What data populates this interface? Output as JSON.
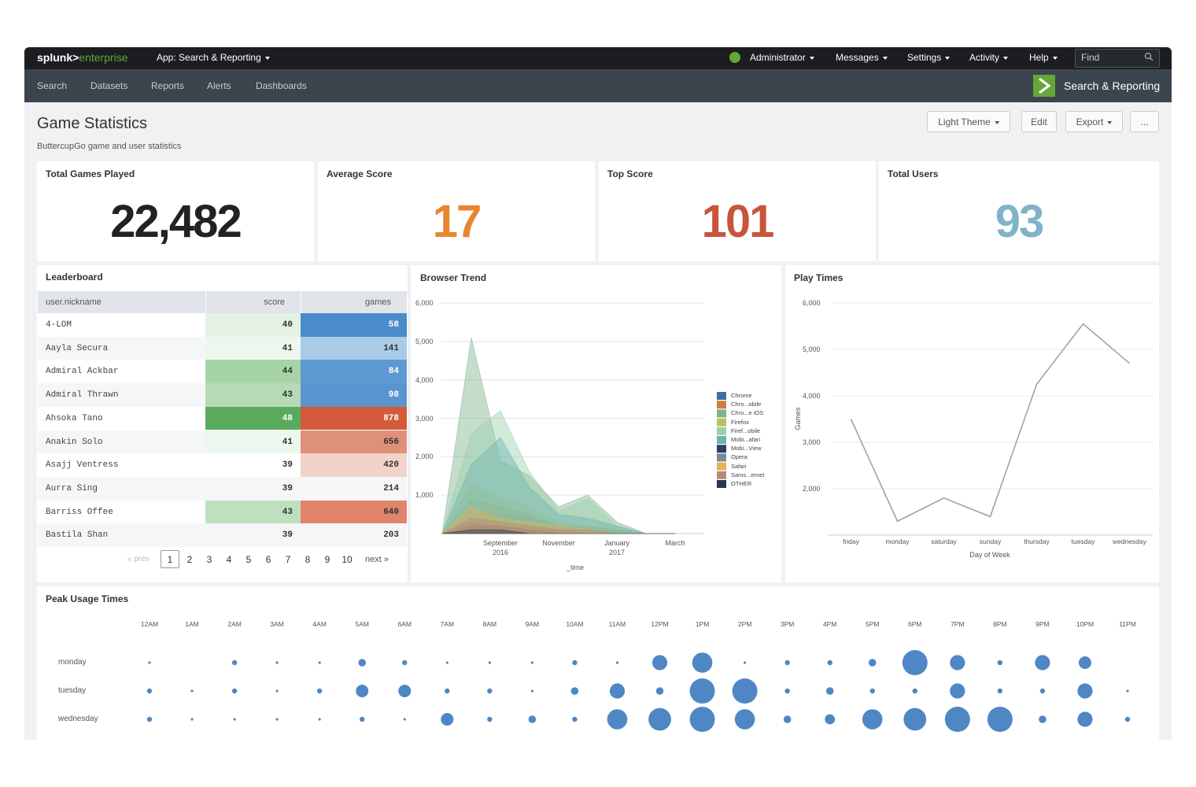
{
  "nav": {
    "logo": {
      "brand": "splunk>",
      "product": "enterprise"
    },
    "app": "App: Search & Reporting",
    "menu": [
      "Administrator",
      "Messages",
      "Settings",
      "Activity",
      "Help"
    ],
    "search_placeholder": "Find"
  },
  "subnav": {
    "links": [
      "Search",
      "Datasets",
      "Reports",
      "Alerts",
      "Dashboards"
    ],
    "app_name": "Search & Reporting"
  },
  "dashboard": {
    "title": "Game Statistics",
    "description": "ButtercupGo game and user statistics",
    "buttons": [
      "Light Theme",
      "Edit",
      "Export",
      "..."
    ]
  },
  "singles": [
    {
      "title": "Total Games Played",
      "value": "22,482",
      "color": "#222222"
    },
    {
      "title": "Average Score",
      "value": "17",
      "color": "#e8862f"
    },
    {
      "title": "Top Score",
      "value": "101",
      "color": "#c8553a"
    },
    {
      "title": "Total Users",
      "value": "93",
      "color": "#7fb3c8"
    }
  ],
  "leaderboard": {
    "title": "Leaderboard",
    "columns": [
      "user.nickname",
      "score",
      "games"
    ],
    "rows": [
      [
        "4-LOM",
        40,
        58
      ],
      [
        "Aayla Secura",
        41,
        141
      ],
      [
        "Admiral Ackbar",
        44,
        84
      ],
      [
        "Admiral Thrawn",
        43,
        98
      ],
      [
        "Ahsoka Tano",
        48,
        878
      ],
      [
        "Anakin Solo",
        41,
        656
      ],
      [
        "Asajj Ventress",
        39,
        420
      ],
      [
        "Aurra Sing",
        39,
        214
      ],
      [
        "Barriss Offee",
        43,
        640
      ],
      [
        "Bastila Shan",
        39,
        203
      ]
    ],
    "score_colors": [
      "#e4f2e4",
      "#eef7ee",
      "#a7d4a7",
      "#b5dab5",
      "#5aaa5c",
      "#eef7ee",
      null,
      null,
      "#bfe0bf",
      null
    ],
    "games_colors": [
      "#4a8bcb",
      "#a9cbe8",
      "#5e99d2",
      "#5a95cf",
      "#d35a3a",
      "#df9078",
      "#f2d3ca",
      null,
      "#e0856b",
      null
    ],
    "pagination": {
      "prev": "« prev",
      "pages": [
        1,
        2,
        3,
        4,
        5,
        6,
        7,
        8,
        9,
        10
      ],
      "next": "next »"
    }
  },
  "chart_data": [
    {
      "type": "area",
      "title": "Browser Trend",
      "x_label": "_time",
      "categories": [
        null,
        null,
        "September\n2016",
        null,
        "November",
        null,
        "January\n2017",
        null,
        "March"
      ],
      "ylim": [
        0,
        6000
      ],
      "yticks": [
        {
          "value": 1000,
          "label": "1,000"
        },
        {
          "value": 2000,
          "label": "2,000"
        },
        {
          "value": 3000,
          "label": "3,000"
        },
        {
          "value": 4000,
          "label": "4,000"
        },
        {
          "value": 5000,
          "label": "5,000"
        },
        {
          "value": 6000,
          "label": "6,000"
        }
      ],
      "grid": true,
      "series": [
        {
          "name": "Chrome",
          "color": "#3b6fa6",
          "values": [
            0,
            600,
            500,
            400,
            200,
            100,
            100,
            0,
            0
          ]
        },
        {
          "name": "Chro...obile",
          "color": "#d07f3e",
          "values": [
            0,
            900,
            700,
            500,
            200,
            200,
            100,
            0,
            0
          ]
        },
        {
          "name": "Chro...e iOS",
          "color": "#7fb38e",
          "values": [
            0,
            5100,
            1900,
            1500,
            700,
            1000,
            300,
            0,
            0
          ]
        },
        {
          "name": "Firefox",
          "color": "#b5c45d",
          "values": [
            0,
            1300,
            900,
            700,
            300,
            200,
            100,
            0,
            0
          ]
        },
        {
          "name": "Firef...obile",
          "color": "#9bd1a8",
          "values": [
            0,
            2600,
            3200,
            1600,
            600,
            900,
            200,
            0,
            0
          ]
        },
        {
          "name": "Mobi...afari",
          "color": "#6fb3b3",
          "values": [
            0,
            1800,
            2500,
            1200,
            500,
            400,
            200,
            0,
            0
          ]
        },
        {
          "name": "Mobi...View",
          "color": "#2f3f5c",
          "values": [
            0,
            200,
            200,
            100,
            0,
            0,
            0,
            0,
            0
          ]
        },
        {
          "name": "Opera",
          "color": "#7a8a9a",
          "values": [
            0,
            300,
            200,
            100,
            100,
            0,
            0,
            0,
            0
          ]
        },
        {
          "name": "Safari",
          "color": "#e5b25a",
          "values": [
            0,
            700,
            400,
            300,
            200,
            100,
            0,
            0,
            0
          ]
        },
        {
          "name": "Sams...ernet",
          "color": "#b58a7a",
          "values": [
            0,
            400,
            300,
            200,
            100,
            100,
            0,
            0,
            0
          ]
        },
        {
          "name": "OTHER",
          "color": "#2a3550",
          "values": [
            0,
            100,
            100,
            0,
            0,
            0,
            0,
            0,
            0
          ]
        }
      ]
    },
    {
      "type": "line",
      "title": "Play Times",
      "x_label": "Day of Week",
      "y_label": "Games",
      "categories": [
        "friday",
        "monday",
        "saturday",
        "sunday",
        "thursday",
        "tuesday",
        "wednesday"
      ],
      "values": [
        3500,
        1300,
        1800,
        1400,
        4250,
        5550,
        4700
      ],
      "color": "#9aa89a",
      "ylim": [
        1000,
        6000
      ],
      "yticks": [
        {
          "value": 2000,
          "label": "2,000"
        },
        {
          "value": 3000,
          "label": "3,000"
        },
        {
          "value": 4000,
          "label": "4,000"
        },
        {
          "value": 5000,
          "label": "5,000"
        },
        {
          "value": 6000,
          "label": "6,000"
        }
      ],
      "grid": true
    },
    {
      "type": "bubble",
      "title": "Peak Usage Times",
      "color": "#4f87c5",
      "categories": [
        "12AM",
        "1AM",
        "2AM",
        "3AM",
        "4AM",
        "5AM",
        "6AM",
        "7AM",
        "8AM",
        "9AM",
        "10AM",
        "11AM",
        "12PM",
        "1PM",
        "2PM",
        "3PM",
        "4PM",
        "5PM",
        "6PM",
        "7PM",
        "8PM",
        "9PM",
        "10PM",
        "11PM"
      ],
      "series": [
        {
          "name": "monday",
          "values": [
            1,
            0,
            4,
            1,
            1,
            9,
            4,
            1,
            1,
            1,
            4,
            1,
            36,
            64,
            1,
            4,
            4,
            9,
            100,
            36,
            4,
            36,
            25,
            0
          ]
        },
        {
          "name": "tuesday",
          "values": [
            4,
            1,
            4,
            1,
            4,
            25,
            25,
            4,
            4,
            1,
            9,
            36,
            9,
            100,
            100,
            4,
            9,
            4,
            4,
            36,
            4,
            4,
            36,
            1
          ]
        },
        {
          "name": "wednesday",
          "values": [
            4,
            1,
            1,
            1,
            1,
            4,
            1,
            25,
            4,
            9,
            4,
            64,
            81,
            100,
            64,
            9,
            16,
            64,
            81,
            100,
            100,
            9,
            36,
            4
          ]
        }
      ]
    }
  ]
}
